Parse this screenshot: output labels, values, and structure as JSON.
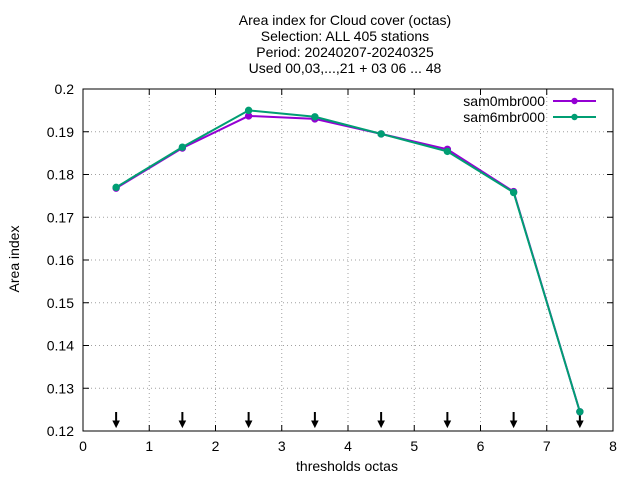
{
  "chart_data": {
    "type": "line",
    "title_lines": [
      "Area index  for Cloud cover (octas)",
      "Selection: ALL    405 stations",
      "Period: 20240207-20240325",
      "Used 00,03,...,21 + 03 06 ... 48"
    ],
    "xlabel": "thresholds octas",
    "ylabel": "Area index",
    "xlim": [
      0,
      8
    ],
    "ylim": [
      0.12,
      0.2
    ],
    "xticks": [
      0,
      1,
      2,
      3,
      4,
      5,
      6,
      7,
      8
    ],
    "yticks": [
      0.12,
      0.13,
      0.14,
      0.15,
      0.16,
      0.17,
      0.18,
      0.19,
      0.2
    ],
    "xtick_labels": [
      "0",
      "1",
      "2",
      "3",
      "4",
      "5",
      "6",
      "7",
      "8"
    ],
    "ytick_labels": [
      "0.12",
      "0.13",
      "0.14",
      "0.15",
      "0.16",
      "0.17",
      "0.18",
      "0.19",
      "0.2"
    ],
    "grid": true,
    "legend_position": "top-right",
    "x": [
      0.5,
      1.5,
      2.5,
      3.5,
      4.5,
      5.5,
      6.5,
      7.5
    ],
    "series": [
      {
        "name": "sam0mbr000",
        "color": "#9400d3",
        "values": [
          0.1768,
          0.1862,
          0.1937,
          0.193,
          0.1895,
          0.1859,
          0.176,
          0.1245
        ]
      },
      {
        "name": "sam6mbr000",
        "color": "#009e73",
        "values": [
          0.177,
          0.1864,
          0.195,
          0.1935,
          0.1895,
          0.1854,
          0.1758,
          0.1245
        ]
      }
    ],
    "markers": {
      "x": [
        0.5,
        1.5,
        2.5,
        3.5,
        4.5,
        5.5,
        6.5,
        7.5
      ],
      "type": "down-arrow"
    }
  }
}
